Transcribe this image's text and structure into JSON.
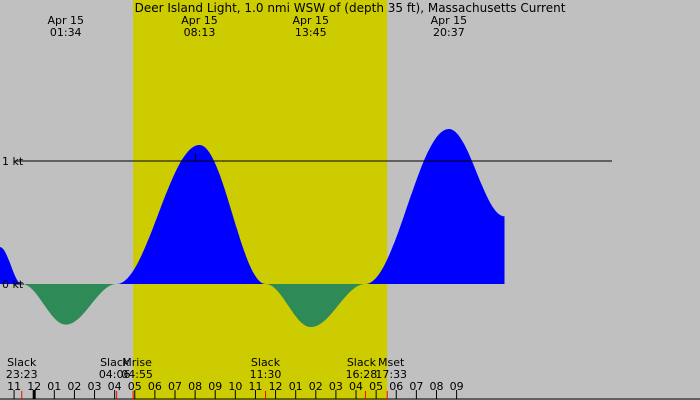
{
  "chart_data": {
    "type": "area",
    "title": "Deer Island Light, 1.0 nmi WSW of (depth 35 ft), Massachusetts Current",
    "colors": {
      "night": "#c0c0c0",
      "day": "#cccc00",
      "flood": "#0000ff",
      "ebb": "#2e8b57",
      "axis": "#000000",
      "sun_tick": "#ff0000",
      "moon_tick": "#000000"
    },
    "x_range_hours": [
      -1.7,
      33.1
    ],
    "y_range_kt": [
      -0.45,
      2.2
    ],
    "y_ticks": [
      {
        "value": 0,
        "label": "0 kt"
      },
      {
        "value": 1,
        "label": "1 kt"
      }
    ],
    "reference_line_kt": 1,
    "daylight_hours": [
      4.917,
      17.55
    ],
    "curve_points": [
      {
        "t": -1.7,
        "v": 0.3
      },
      {
        "t": -0.617,
        "v": 0
      },
      {
        "t": 1.567,
        "v": -0.33
      },
      {
        "t": 4.1,
        "v": 0
      },
      {
        "t": 8.217,
        "v": 1.13
      },
      {
        "t": 11.5,
        "v": 0
      },
      {
        "t": 13.75,
        "v": -0.35
      },
      {
        "t": 16.467,
        "v": 0
      },
      {
        "t": 20.617,
        "v": 1.26
      },
      {
        "t": 23.383,
        "v": 0.55
      }
    ],
    "extremes": [
      {
        "day": "Apr 15",
        "time": "01:34",
        "t": 1.567
      },
      {
        "day": "Apr 15",
        "time": "08:13",
        "t": 8.217
      },
      {
        "day": "Apr 15",
        "time": "13:45",
        "t": 13.75
      },
      {
        "day": "Apr 15",
        "time": "20:37",
        "t": 20.617
      }
    ],
    "events": [
      {
        "label": "Slack",
        "time": "23:23",
        "t": -0.617
      },
      {
        "label": "Slack",
        "time": "04:06",
        "t": 4.1
      },
      {
        "label": "Mrise",
        "time": "04:55",
        "t": 4.917
      },
      {
        "label": "Slack",
        "time": "11:30",
        "t": 11.5
      },
      {
        "label": "Slack",
        "time": "16:28",
        "t": 16.467
      },
      {
        "label": "Mset",
        "time": "17:33",
        "t": 17.55
      }
    ],
    "hour_ticks": [
      {
        "t": -1,
        "label": "11"
      },
      {
        "t": 0,
        "label": "12"
      },
      {
        "t": 1,
        "label": "01"
      },
      {
        "t": 2,
        "label": "02"
      },
      {
        "t": 3,
        "label": "03"
      },
      {
        "t": 4,
        "label": "04"
      },
      {
        "t": 5,
        "label": "05"
      },
      {
        "t": 6,
        "label": "06"
      },
      {
        "t": 7,
        "label": "07"
      },
      {
        "t": 8,
        "label": "08"
      },
      {
        "t": 9,
        "label": "09"
      },
      {
        "t": 10,
        "label": "10"
      },
      {
        "t": 11,
        "label": "11"
      },
      {
        "t": 12,
        "label": "12"
      },
      {
        "t": 13,
        "label": "01"
      },
      {
        "t": 14,
        "label": "02"
      },
      {
        "t": 15,
        "label": "03"
      },
      {
        "t": 16,
        "label": "04"
      },
      {
        "t": 17,
        "label": "05"
      },
      {
        "t": 18,
        "label": "06"
      },
      {
        "t": 19,
        "label": "07"
      },
      {
        "t": 20,
        "label": "08"
      },
      {
        "t": 21,
        "label": "09"
      }
    ],
    "sun_ticks_hours": [
      -0.617,
      4.1,
      4.917,
      11.5,
      16.467,
      17.55
    ],
    "midnight_tick_hours": [
      0
    ]
  }
}
